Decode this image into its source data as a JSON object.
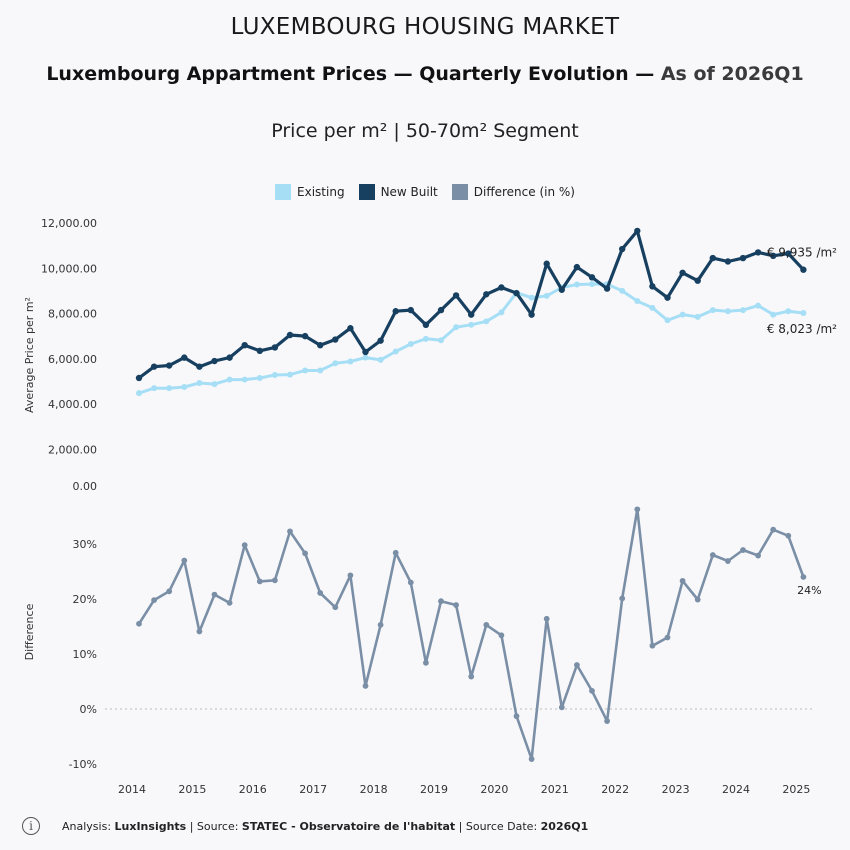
{
  "header": {
    "kicker": "LUXEMBOURG HOUSING MARKET",
    "title_main": "Luxembourg Appartment Prices — Quarterly Evolution — ",
    "title_asof": "As of 2026Q1",
    "subtitle": "Price per m² | 50-70m² Segment"
  },
  "footer": {
    "analysis_label": "Analysis: ",
    "analysis_value": "LuxInsights",
    "source_label": " | Source: ",
    "source_value": "STATEC - Observatoire de l'habitat",
    "date_label": " | Source Date: ",
    "date_value": "2026Q1",
    "icon": "info-icon"
  },
  "colors": {
    "existing": "#a6dff5",
    "new_built": "#173f5f",
    "difference": "#7a8fa6"
  },
  "chart_data": [
    {
      "type": "line",
      "ylabel": "Average Price per m²",
      "ylim": [
        2000,
        12000
      ],
      "y_ticks": [
        2000,
        4000,
        6000,
        8000,
        10000,
        12000
      ],
      "y_tick_labels": [
        "2,000.00",
        "4,000.00",
        "6,000.00",
        "8,000.00",
        "10,000.00",
        "12,000.00"
      ],
      "x_tick_labels": [
        "2014",
        "2015",
        "2016",
        "2017",
        "2018",
        "2019",
        "2020",
        "2021",
        "2022",
        "2023",
        "2024",
        "2025"
      ],
      "x_start": "2014Q1",
      "legend_position": "top-center",
      "series": [
        {
          "name": "Existing",
          "values": [
            4480,
            4700,
            4700,
            4750,
            4930,
            4880,
            5080,
            5080,
            5150,
            5280,
            5300,
            5480,
            5480,
            5800,
            5880,
            6050,
            5950,
            6320,
            6650,
            6880,
            6820,
            7400,
            7500,
            7650,
            8050,
            8920,
            8700,
            8780,
            9150,
            9280,
            9300,
            9300,
            9000,
            8550,
            8250,
            7700,
            7950,
            7850,
            8150,
            8100,
            8150,
            8350,
            7950,
            8100,
            8023
          ],
          "end_label": "€ 8,023 /m²"
        },
        {
          "name": "New Built",
          "values": [
            5150,
            5650,
            5700,
            6050,
            5650,
            5900,
            6050,
            6600,
            6350,
            6500,
            7050,
            7000,
            6600,
            6850,
            7350,
            6300,
            6800,
            8100,
            8150,
            7500,
            8150,
            8800,
            7950,
            8850,
            9150,
            8900,
            7950,
            10200,
            9050,
            10050,
            9600,
            9100,
            10850,
            11650,
            9200,
            8700,
            9800,
            9450,
            10450,
            10300,
            10450,
            10700,
            10550,
            10650,
            9935
          ],
          "end_label": "€ 9,935 /m²"
        }
      ]
    },
    {
      "type": "line",
      "ylabel": "Difference",
      "ylim": [
        -10,
        35
      ],
      "y_ticks": [
        -10,
        0,
        10,
        20,
        30
      ],
      "y_tick_labels": [
        "-10%",
        "0%",
        "10%",
        "20%",
        "30%"
      ],
      "x_tick_labels": [
        "2014",
        "2015",
        "2016",
        "2017",
        "2018",
        "2019",
        "2020",
        "2021",
        "2022",
        "2023",
        "2024",
        "2025"
      ],
      "series": [
        {
          "name": "Difference (in %)",
          "values": [
            15.5,
            19.8,
            21.4,
            27.0,
            14.1,
            20.8,
            19.3,
            29.8,
            23.2,
            23.4,
            32.3,
            28.3,
            21.1,
            18.5,
            24.3,
            4.2,
            15.3,
            28.4,
            23.0,
            8.4,
            19.6,
            18.9,
            5.9,
            15.3,
            13.4,
            -1.3,
            -9.1,
            16.4,
            0.3,
            8.0,
            3.3,
            -2.2,
            20.1,
            36.3,
            11.5,
            13.0,
            23.3,
            19.9,
            28.0,
            26.9,
            28.9,
            27.9,
            32.6,
            31.5,
            24.0
          ],
          "end_label": "24%"
        }
      ]
    }
  ]
}
